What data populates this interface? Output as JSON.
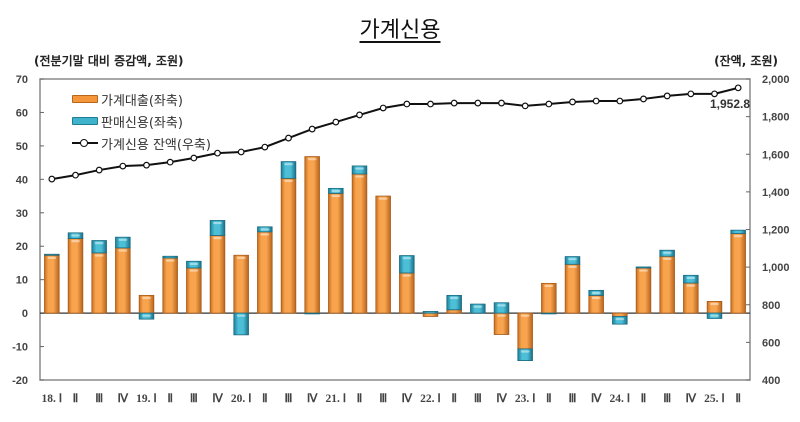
{
  "title": "가계신용",
  "unit_left": "(전분기말 대비 증감액, 조원)",
  "unit_right": "(잔액, 조원)",
  "legend": {
    "loan": "가계대출(좌축)",
    "sales_credit": "판매신용(좌축)",
    "balance": "가계신용 잔액(우축)"
  },
  "last_value_label": "1,952.8",
  "colors": {
    "loan": "#f5963a",
    "sales_credit": "#3fb2cc",
    "line": "#111111"
  },
  "chart_data": {
    "type": "bar",
    "stacked": true,
    "title": "가계신용",
    "ylabel": "전분기말 대비 증감액, 조원",
    "y2label": "잔액, 조원",
    "ylim": [
      -20,
      70
    ],
    "y2lim": [
      400,
      2000
    ],
    "yticks": [
      -20,
      -10,
      0,
      10,
      20,
      30,
      40,
      50,
      60,
      70
    ],
    "y2ticks": [
      "400",
      "600",
      "800",
      "1,000",
      "1,200",
      "1,400",
      "1,600",
      "1,800",
      "2,000"
    ],
    "categories": [
      "18. Ⅰ",
      "Ⅱ",
      "Ⅲ",
      "Ⅳ",
      "19. Ⅰ",
      "Ⅱ",
      "Ⅲ",
      "Ⅳ",
      "20. Ⅰ",
      "Ⅱ",
      "Ⅲ",
      "Ⅳ",
      "21. Ⅰ",
      "Ⅱ",
      "Ⅲ",
      "Ⅳ",
      "22. Ⅰ",
      "Ⅱ",
      "Ⅲ",
      "Ⅳ",
      "23. Ⅰ",
      "Ⅱ",
      "Ⅲ",
      "Ⅳ",
      "24. Ⅰ",
      "Ⅱ",
      "Ⅲ",
      "Ⅳ",
      "25. Ⅰ",
      "Ⅱ"
    ],
    "series": [
      {
        "name": "가계대출(좌축)",
        "type": "bar",
        "axis": "left",
        "values": [
          17.3,
          22.3,
          18.0,
          19.5,
          5.3,
          16.5,
          13.5,
          23.2,
          17.3,
          24.3,
          40.3,
          46.8,
          35.8,
          41.6,
          35.0,
          12.0,
          -1.0,
          1.0,
          0.0,
          -6.4,
          -10.7,
          8.9,
          14.6,
          5.3,
          -1.0,
          13.5,
          17.0,
          9.0,
          3.5,
          23.8
        ]
      },
      {
        "name": "판매신용(좌축)",
        "type": "bar",
        "axis": "left",
        "values": [
          0.3,
          1.7,
          3.7,
          3.2,
          -1.8,
          0.5,
          2.0,
          4.5,
          -6.5,
          1.5,
          5.0,
          -0.2,
          1.5,
          2.4,
          0.0,
          5.2,
          0.5,
          4.3,
          2.7,
          3.1,
          -3.5,
          -0.2,
          2.3,
          1.5,
          -2.3,
          0.3,
          1.8,
          2.3,
          -1.6,
          1.0
        ]
      },
      {
        "name": "가계신용 잔액(우축)",
        "type": "line",
        "axis": "right",
        "values": [
          1468,
          1489,
          1516,
          1537,
          1542,
          1558,
          1580,
          1606,
          1612,
          1638,
          1686,
          1734,
          1771,
          1809,
          1846,
          1867,
          1867,
          1872,
          1872,
          1872,
          1857,
          1867,
          1878,
          1883,
          1883,
          1894,
          1910,
          1921,
          1921,
          1952.8
        ]
      }
    ],
    "annotations": [
      "1,952.8"
    ],
    "legend_position": "upper-left",
    "grid": false
  }
}
